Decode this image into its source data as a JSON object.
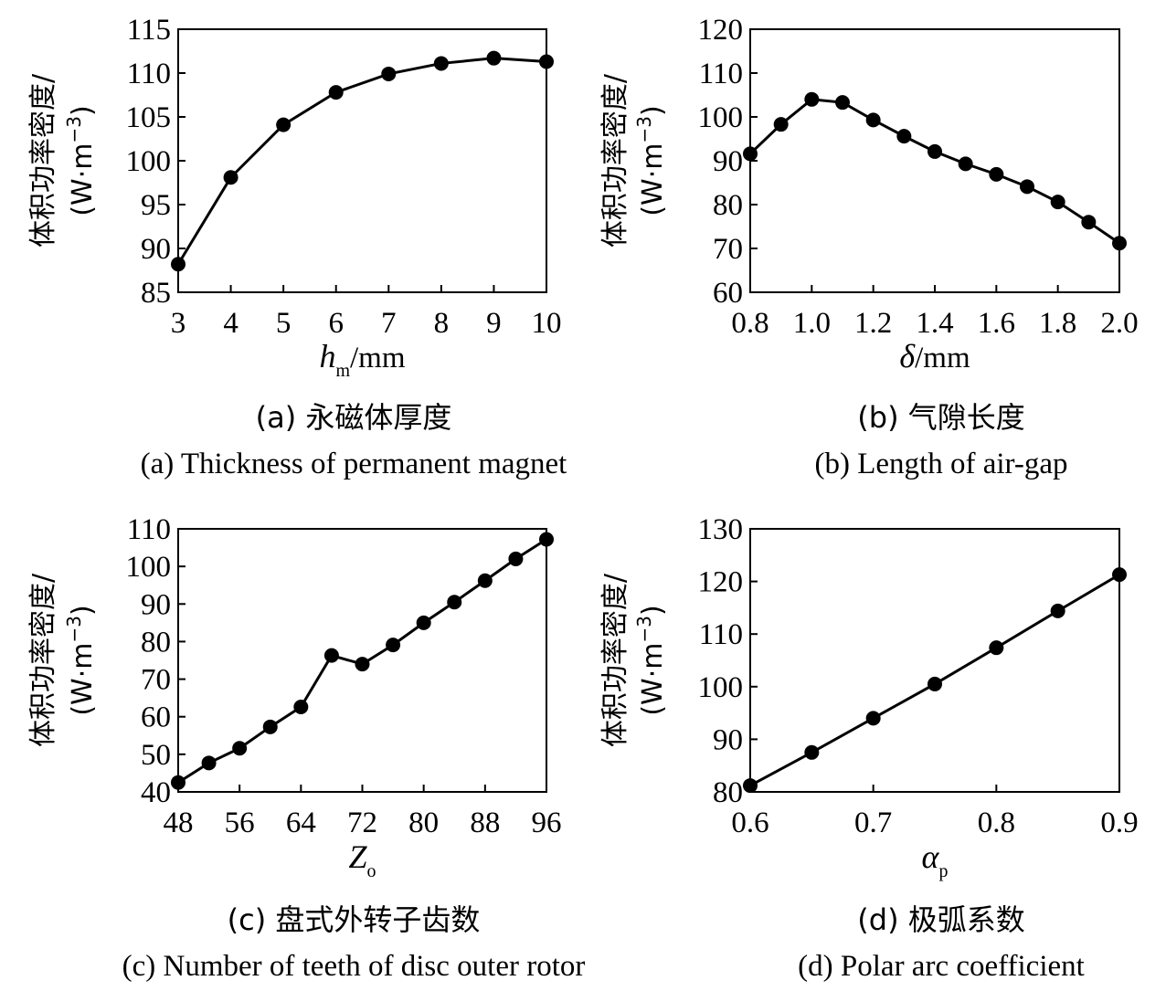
{
  "chart_data": [
    {
      "type": "line",
      "xlabel": {
        "main": "h",
        "sub": "m",
        "suffix": "/mm"
      },
      "ylabel": {
        "line1": "体积功率密度/",
        "line2": "(W·m",
        "sup": "−3",
        "close": ")"
      },
      "caption_zh": "(a) 永磁体厚度",
      "caption_en": "(a) Thickness of permanent magnet",
      "xlim": [
        3,
        10
      ],
      "ylim": [
        85,
        115
      ],
      "xticks": [
        3,
        4,
        5,
        6,
        7,
        8,
        9,
        10
      ],
      "yticks": [
        85,
        90,
        95,
        100,
        105,
        110,
        115
      ],
      "x": [
        3,
        4,
        5,
        6,
        7,
        8,
        9,
        10
      ],
      "y": [
        88.2,
        98.1,
        104.1,
        107.8,
        109.9,
        111.1,
        111.7,
        111.3
      ]
    },
    {
      "type": "line",
      "xlabel": {
        "main": "δ",
        "sub": "",
        "suffix": "/mm"
      },
      "ylabel": {
        "line1": "体积功率密度/",
        "line2": "(W·m",
        "sup": "−3",
        "close": ")"
      },
      "caption_zh": "(b) 气隙长度",
      "caption_en": "(b) Length of air-gap",
      "xlim": [
        0.8,
        2.0
      ],
      "ylim": [
        60,
        120
      ],
      "xticks": [
        "0.8",
        "1.0",
        "1.2",
        "1.4",
        "1.6",
        "1.8",
        "2.0"
      ],
      "yticks": [
        60,
        70,
        80,
        90,
        100,
        110,
        120
      ],
      "x": [
        0.8,
        0.9,
        1.0,
        1.1,
        1.2,
        1.3,
        1.4,
        1.5,
        1.6,
        1.7,
        1.8,
        1.9,
        2.0
      ],
      "y": [
        91.6,
        98.3,
        104.0,
        103.3,
        99.3,
        95.6,
        92.1,
        89.3,
        86.9,
        84.1,
        80.6,
        76.0,
        71.2
      ]
    },
    {
      "type": "line",
      "xlabel": {
        "main": "Z",
        "sub": "o",
        "suffix": ""
      },
      "ylabel": {
        "line1": "体积功率密度/",
        "line2": "(W·m",
        "sup": "−3",
        "close": ")"
      },
      "caption_zh": "(c) 盘式外转子齿数",
      "caption_en": "(c) Number of teeth of disc outer rotor",
      "xlim": [
        48,
        96
      ],
      "ylim": [
        40,
        110
      ],
      "xticks": [
        48,
        56,
        64,
        72,
        80,
        88,
        96
      ],
      "yticks": [
        40,
        50,
        60,
        70,
        80,
        90,
        100,
        110
      ],
      "x": [
        48,
        52,
        56,
        60,
        64,
        68,
        72,
        76,
        80,
        84,
        88,
        92,
        96
      ],
      "y": [
        42.5,
        47.7,
        51.6,
        57.3,
        62.6,
        76.3,
        74.0,
        79.1,
        85.0,
        90.5,
        96.2,
        102.0,
        107.2
      ]
    },
    {
      "type": "line",
      "xlabel": {
        "main": "α",
        "sub": "p",
        "suffix": ""
      },
      "ylabel": {
        "line1": "体积功率密度/",
        "line2": "(W·m",
        "sup": "−3",
        "close": ")"
      },
      "caption_zh": "(d) 极弧系数",
      "caption_en": "(d) Polar arc coefficient",
      "xlim": [
        0.6,
        0.9
      ],
      "ylim": [
        80,
        130
      ],
      "xticks": [
        "0.6",
        "0.7",
        "0.8",
        "0.9"
      ],
      "yticks": [
        80,
        90,
        100,
        110,
        120,
        130
      ],
      "x": [
        0.6,
        0.65,
        0.7,
        0.75,
        0.8,
        0.85,
        0.9
      ],
      "y": [
        81.2,
        87.5,
        94.0,
        100.5,
        107.4,
        114.4,
        121.3
      ]
    }
  ]
}
